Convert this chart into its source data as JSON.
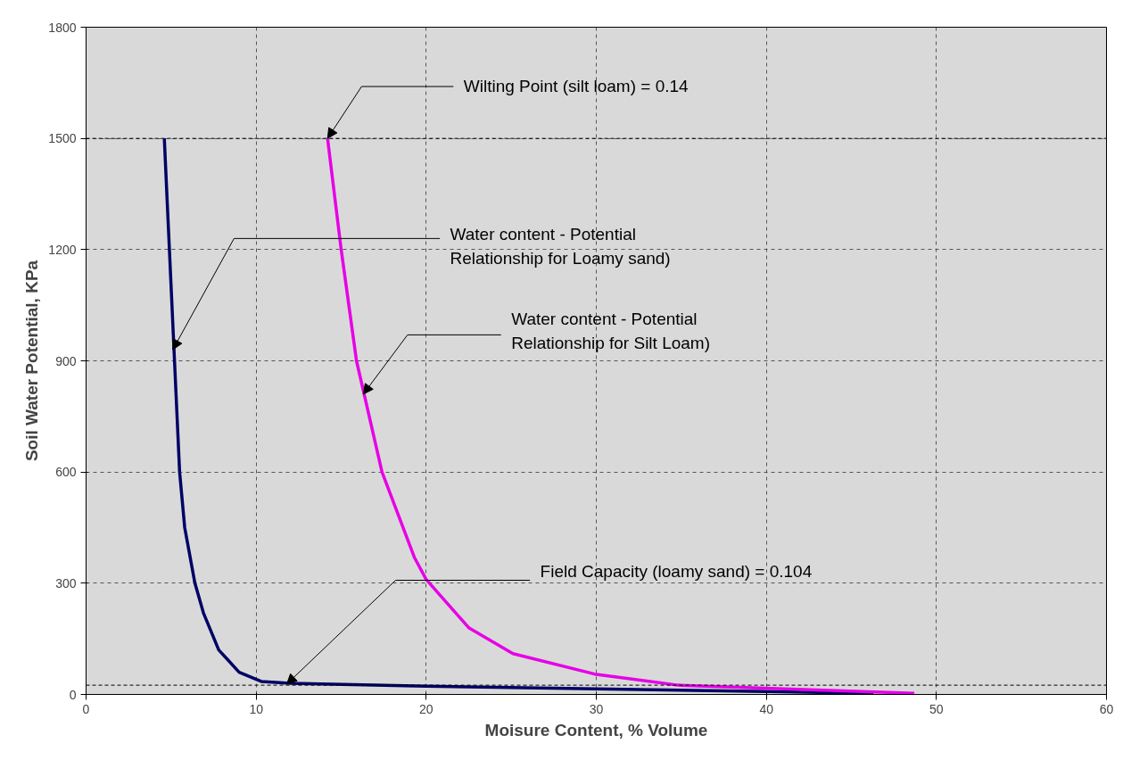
{
  "chart_data": {
    "type": "line",
    "xlabel": "Moisure Content, % Volume",
    "ylabel": "Soil Water Potential, KPa",
    "xlim": [
      0,
      60
    ],
    "xticks": [
      0,
      10,
      20,
      30,
      40,
      50,
      60
    ],
    "ylim": [
      0,
      1800
    ],
    "yticks": [
      0,
      300,
      600,
      900,
      1200,
      1500,
      1800
    ],
    "grid": true,
    "marker": "none",
    "line_style": "solid",
    "series": [
      {
        "color": "#000066",
        "x": [
          4.6,
          4.9,
          5.2,
          5.5,
          5.8,
          6.4,
          6.9,
          7.8,
          9.0,
          10.3,
          12,
          20,
          30,
          40,
          46.3
        ],
        "values": [
          1500,
          1200,
          900,
          600,
          450,
          300,
          220,
          120,
          60,
          35,
          30,
          22,
          15,
          8,
          3
        ]
      },
      {
        "color": "#e600e6",
        "x": [
          14.2,
          15.0,
          15.9,
          17.4,
          19.3,
          20.0,
          22.5,
          25.1,
          29.9,
          34.8,
          39.9,
          48.7
        ],
        "values": [
          1500,
          1200,
          900,
          600,
          370,
          310,
          180,
          110,
          55,
          25,
          17,
          3
        ]
      }
    ],
    "ref_lines": [
      {
        "axis": "y",
        "value": 1500,
        "color": "#000000",
        "line_style": "dashed"
      },
      {
        "axis": "y",
        "value": 25,
        "color": "#000000",
        "line_style": "dashed"
      }
    ],
    "annotations": [
      "Wilting Point (silt loam) = 0.14",
      "Water content - Potential\nRelationship for Loamy sand)",
      "Water content - Potential\nRelationship for Silt Loam)",
      "Field Capacity (loamy sand) = 0.104"
    ]
  }
}
